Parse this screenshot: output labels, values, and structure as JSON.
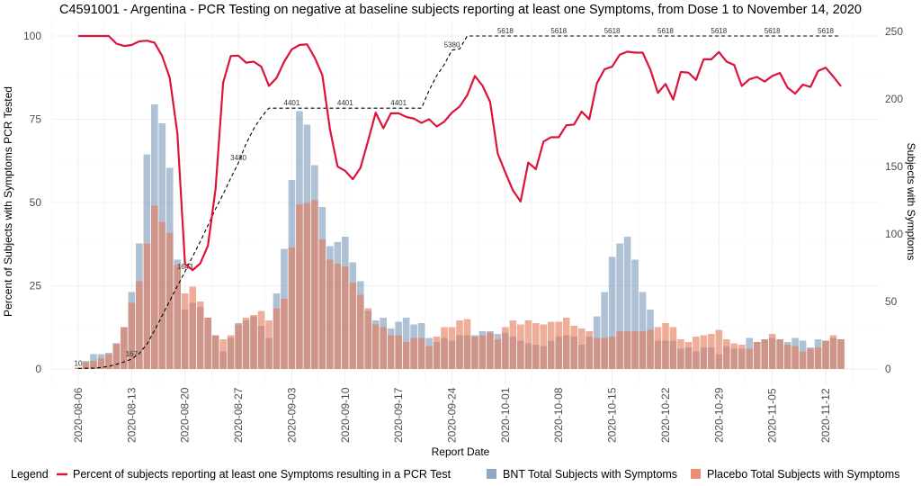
{
  "chart_data": {
    "type": "bar+line",
    "title": "C4591001 - Argentina - PCR Testing on negative at baseline subjects reporting at least one Symptoms, from Dose 1 to November 14, 2020",
    "xlabel": "Report Date",
    "ylabel": "Percent of Subjects with Symptoms PCR Tested",
    "ylabel_right": "Subjects with Symptoms",
    "ylim": [
      0,
      100
    ],
    "ylim_right": [
      0,
      250
    ],
    "yticks": [
      0,
      25,
      50,
      75,
      100
    ],
    "yticks_right": [
      0,
      50,
      100,
      150,
      200,
      250
    ],
    "grid": true,
    "start_date": "2020-08-06",
    "xtick_labels": [
      "2020-08-06",
      "2020-08-13",
      "2020-08-20",
      "2020-08-27",
      "2020-09-03",
      "2020-09-10",
      "2020-09-17",
      "2020-09-24",
      "2020-10-01",
      "2020-10-08",
      "2020-10-15",
      "2020-10-22",
      "2020-10-29",
      "2020-11-05",
      "2020-11-12"
    ],
    "series": [
      {
        "name": "BNT Total Subjects with Symptoms",
        "axis": "right",
        "kind": "bar",
        "color": "#7A97B8",
        "values": [
          1,
          6,
          11,
          11,
          12,
          19,
          31,
          57,
          93,
          159,
          196,
          182,
          149,
          81,
          44,
          49,
          46,
          38,
          25,
          13,
          23,
          34,
          36,
          39,
          32,
          23,
          56,
          89,
          140,
          191,
          181,
          151,
          120,
          91,
          94,
          98,
          79,
          65,
          43,
          36,
          38,
          30,
          35,
          38,
          33,
          34,
          23,
          20,
          23,
          21,
          25,
          25,
          25,
          28,
          28,
          26,
          27,
          24,
          21,
          19,
          18,
          17,
          21,
          24,
          25,
          24,
          18,
          24,
          39,
          57,
          83,
          93,
          98,
          81,
          57,
          44,
          21,
          21,
          21,
          15,
          16,
          13,
          16,
          16,
          11,
          17,
          15,
          15,
          23,
          20,
          22,
          23,
          22,
          20,
          23,
          21,
          16,
          22,
          21,
          23,
          22
        ]
      },
      {
        "name": "Placebo Total Subjects with Symptoms",
        "axis": "right",
        "kind": "bar",
        "color": "#E47857",
        "values": [
          1,
          5,
          6,
          8,
          11,
          19,
          31,
          49,
          65,
          93,
          121,
          109,
          101,
          77,
          56,
          61,
          50,
          38,
          25,
          22,
          25,
          33,
          38,
          40,
          43,
          36,
          45,
          52,
          90,
          122,
          123,
          125,
          96,
          81,
          78,
          76,
          64,
          55,
          45,
          33,
          31,
          25,
          25,
          20,
          23,
          23,
          17,
          24,
          31,
          31,
          36,
          37,
          24,
          25,
          27,
          22,
          31,
          36,
          33,
          36,
          34,
          33,
          35,
          35,
          38,
          32,
          30,
          28,
          23,
          23,
          24,
          28,
          28,
          28,
          28,
          29,
          31,
          34,
          31,
          22,
          20,
          24,
          25,
          26,
          29,
          22,
          19,
          18,
          15,
          20,
          22,
          26,
          22,
          18,
          17,
          13,
          15,
          16,
          21,
          25,
          22
        ]
      },
      {
        "name": "Percent of subjects reporting at least one Symptoms resulting in a PCR Test",
        "axis": "left",
        "kind": "line",
        "color": "#DC143C",
        "values": [
          100,
          100,
          100,
          100,
          100,
          97.7,
          97,
          97.3,
          98.4,
          98.6,
          98,
          94,
          87.4,
          70.7,
          31.5,
          29.7,
          31.7,
          37,
          54,
          86,
          94,
          94.1,
          92,
          92.3,
          90.8,
          85,
          87.4,
          92.3,
          96,
          97.3,
          97.5,
          93.5,
          88.3,
          72,
          60.8,
          59.5,
          57,
          60.4,
          68.5,
          77,
          72.3,
          76.8,
          76.8,
          75.7,
          75.2,
          73.9,
          75,
          72.8,
          74.3,
          77,
          78.8,
          82.2,
          88,
          85.1,
          80.2,
          64.7,
          59,
          53.6,
          50.3,
          62,
          60,
          68.3,
          69.6,
          69.6,
          73.2,
          73.4,
          77.3,
          75,
          85.8,
          90,
          90.8,
          94.4,
          95.3,
          95,
          95,
          90,
          82.9,
          85.6,
          80.9,
          89.2,
          89,
          86.8,
          93,
          93,
          95.2,
          92.3,
          91.3,
          85,
          87,
          87.7,
          86.3,
          88,
          88.9,
          84.5,
          82.7,
          85.4,
          84.7,
          89.5,
          90.5,
          87.8,
          84.9
        ]
      },
      {
        "kind": "dashed-line",
        "color": "#000000",
        "label_every_days": 7,
        "cumulative_tested": [
          10,
          12,
          15,
          25,
          45,
          80,
          120,
          167,
          260,
          420,
          650,
          900,
          1150,
          1400,
          1643,
          1900,
          2150,
          2420,
          2700,
          2950,
          3220,
          3480,
          3800,
          4050,
          4250,
          4401,
          4401,
          4401,
          4401,
          4401,
          4401,
          4401,
          4401,
          4401,
          4401,
          4401,
          4401,
          4401,
          4401,
          4401,
          4401,
          4401,
          4401,
          4401,
          4401,
          4401,
          4700,
          4950,
          5138,
          5380,
          5400,
          5618,
          5618,
          5618,
          5618,
          5618,
          5618,
          5618,
          5618,
          5618,
          5618,
          5618,
          5618,
          5618,
          5618,
          5618,
          5618,
          5618,
          5618,
          5618,
          5618,
          5618,
          5618,
          5618,
          5618,
          5618,
          5618,
          5618,
          5618,
          5618,
          5618,
          5618,
          5618,
          5618,
          5618,
          5618,
          5618,
          5618,
          5618,
          5618,
          5618,
          5618,
          5618,
          5618,
          5618,
          5618,
          5618,
          5618,
          5618,
          5618,
          5618
        ]
      }
    ],
    "legend": {
      "title": "Legend",
      "position": "bottom",
      "items": [
        {
          "label": "Percent of subjects reporting at least one Symptoms resulting in a PCR Test",
          "symbol": "line",
          "color": "#DC143C"
        },
        {
          "label": "BNT Total Subjects with Symptoms",
          "symbol": "square",
          "color": "#8FA8C4"
        },
        {
          "label": "Placebo Total Subjects with Symptoms",
          "symbol": "square",
          "color": "#EC8C74"
        }
      ]
    }
  }
}
